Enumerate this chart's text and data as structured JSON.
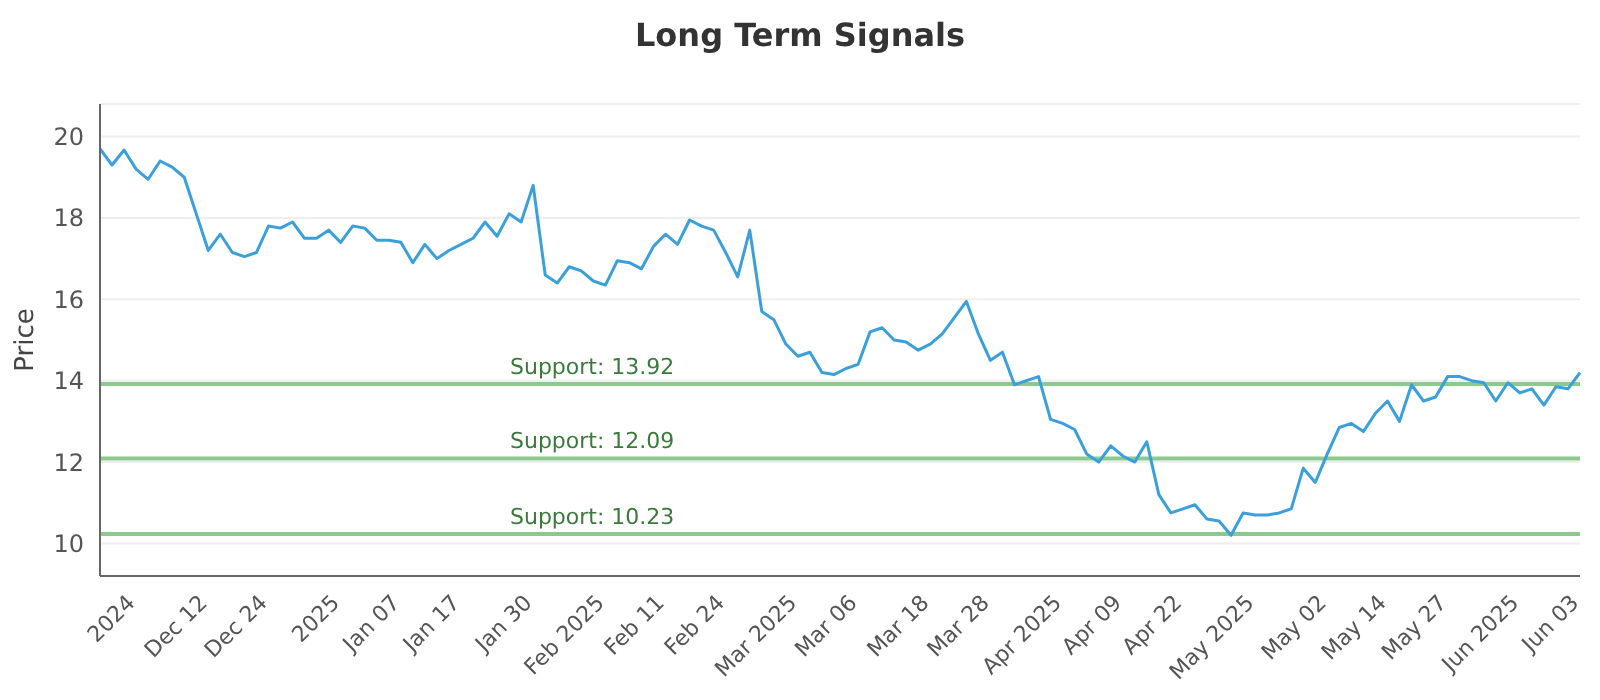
{
  "chart_data": {
    "type": "line",
    "title": "Long Term Signals",
    "ylabel": "Price",
    "categories": [
      null,
      null,
      null,
      "2024",
      null,
      null,
      null,
      null,
      null,
      "Dec 12",
      null,
      null,
      null,
      null,
      "Dec 24",
      null,
      null,
      null,
      null,
      null,
      "2025",
      null,
      null,
      null,
      null,
      "Jan 07",
      null,
      null,
      null,
      null,
      "Jan 17",
      null,
      null,
      null,
      null,
      null,
      "Jan 30",
      null,
      null,
      null,
      null,
      null,
      "Feb 2025",
      null,
      null,
      null,
      null,
      "Feb 11",
      null,
      null,
      null,
      null,
      "Feb 24",
      null,
      null,
      null,
      null,
      null,
      "Mar 2025",
      null,
      null,
      null,
      null,
      "Mar 06",
      null,
      null,
      null,
      null,
      null,
      "Mar 18",
      null,
      null,
      null,
      null,
      "Mar 28",
      null,
      null,
      null,
      null,
      null,
      "Apr 2025",
      null,
      null,
      null,
      null,
      "Apr 09",
      null,
      null,
      null,
      null,
      "Apr 22",
      null,
      null,
      null,
      null,
      null,
      "May 2025",
      null,
      null,
      null,
      null,
      null,
      "May 02",
      null,
      null,
      null,
      null,
      "May 14",
      null,
      null,
      null,
      null,
      "May 27",
      null,
      null,
      null,
      null,
      null,
      "Jun 2025",
      null,
      null,
      null,
      null,
      "Jun 03"
    ],
    "series": [
      {
        "color": "#3aa0dc",
        "values": [
          19.7,
          19.3,
          19.67,
          19.2,
          18.95,
          19.4,
          19.25,
          19.0,
          18.1,
          17.2,
          17.6,
          17.15,
          17.05,
          17.15,
          17.8,
          17.75,
          17.9,
          17.5,
          17.5,
          17.7,
          17.4,
          17.8,
          17.75,
          17.45,
          17.45,
          17.4,
          16.9,
          17.35,
          17.0,
          17.2,
          17.35,
          17.5,
          17.9,
          17.55,
          18.1,
          17.9,
          18.8,
          16.6,
          16.4,
          16.8,
          16.7,
          16.45,
          16.35,
          16.95,
          16.9,
          16.75,
          17.3,
          17.6,
          17.35,
          17.95,
          17.8,
          17.7,
          17.15,
          16.55,
          17.7,
          15.7,
          15.5,
          14.9,
          14.6,
          14.7,
          14.2,
          14.15,
          14.3,
          14.4,
          15.2,
          15.3,
          15.0,
          14.95,
          14.75,
          14.9,
          15.15,
          15.55,
          15.95,
          15.15,
          14.5,
          14.7,
          13.9,
          14.0,
          14.1,
          13.05,
          12.95,
          12.8,
          12.2,
          12.0,
          12.4,
          12.15,
          12.0,
          12.5,
          11.2,
          10.75,
          10.85,
          10.95,
          10.6,
          10.55,
          10.2,
          10.75,
          10.7,
          10.7,
          10.75,
          10.85,
          11.85,
          11.5,
          12.2,
          12.85,
          12.95,
          12.75,
          13.2,
          13.5,
          13.0,
          13.9,
          13.5,
          13.6,
          14.1,
          14.1,
          14.0,
          13.95,
          13.5,
          13.95,
          13.7,
          13.8,
          13.4,
          13.85,
          13.8,
          14.2
        ]
      }
    ],
    "ylim": [
      9.2,
      20.8
    ],
    "yticks": [
      10,
      12,
      14,
      16,
      18,
      20
    ],
    "grid": "y",
    "legend": false,
    "marker": "none",
    "line_style": "solid",
    "ref_lines": [
      {
        "axis": "y",
        "value": 13.92,
        "label": "Support: 13.92",
        "color": "#8cc98c"
      },
      {
        "axis": "y",
        "value": 12.09,
        "label": "Support: 12.09",
        "color": "#8cc98c"
      },
      {
        "axis": "y",
        "value": 10.23,
        "label": "Support: 10.23",
        "color": "#8cc98c"
      }
    ]
  }
}
